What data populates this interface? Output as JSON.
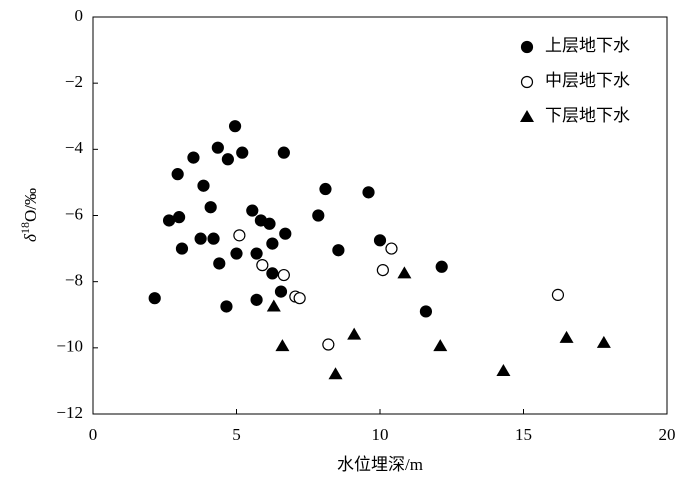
{
  "chart_data": {
    "type": "scatter",
    "x_label": "水位埋深/m",
    "y_label": {
      "prefix": "δ",
      "sup": "18",
      "suffix": "O/‰"
    },
    "xlim": [
      0,
      20
    ],
    "xticks": [
      0,
      5,
      10,
      15,
      20
    ],
    "ylim": [
      -12,
      0
    ],
    "yticks": [
      {
        "value": -12,
        "label": "−12"
      },
      {
        "value": -10,
        "label": "−10"
      },
      {
        "value": -8,
        "label": "−8"
      },
      {
        "value": -6,
        "label": "−6"
      },
      {
        "value": -4,
        "label": "−4"
      },
      {
        "value": -2,
        "label": "−2"
      },
      0
    ],
    "legend": "upper right",
    "series": [
      {
        "name": "上层地下水",
        "marker": "filled-circle",
        "color": "#000000",
        "x": [
          2.15,
          2.65,
          3.0,
          2.95,
          3.1,
          3.5,
          3.75,
          3.85,
          4.1,
          4.2,
          4.35,
          4.4,
          4.65,
          4.7,
          4.95,
          5.0,
          5.2,
          5.55,
          5.7,
          5.7,
          5.85,
          6.15,
          6.25,
          6.25,
          6.55,
          6.7,
          6.65,
          7.85,
          8.1,
          8.55,
          9.6,
          10.0,
          11.6,
          12.15
        ],
        "values": [
          -8.5,
          -6.15,
          -6.05,
          -4.75,
          -7.0,
          -4.25,
          -6.7,
          -5.1,
          -5.75,
          -6.7,
          -3.95,
          -7.45,
          -8.75,
          -4.3,
          -3.3,
          -7.15,
          -4.1,
          -5.85,
          -7.15,
          -8.55,
          -6.15,
          -6.25,
          -6.85,
          -7.75,
          -8.3,
          -6.55,
          -4.1,
          -6.0,
          -5.2,
          -7.05,
          -5.3,
          -6.75,
          -8.9,
          -7.55
        ]
      },
      {
        "name": "中层地下水",
        "marker": "open-circle",
        "color": "#000000",
        "x": [
          5.1,
          5.9,
          6.65,
          7.05,
          7.2,
          8.2,
          10.1,
          10.4,
          16.2
        ],
        "values": [
          -6.6,
          -7.5,
          -7.8,
          -8.45,
          -8.5,
          -9.9,
          -7.65,
          -7.0,
          -8.4
        ]
      },
      {
        "name": "下层地下水",
        "marker": "triangle",
        "color": "#000000",
        "x": [
          6.3,
          6.6,
          8.45,
          9.1,
          10.85,
          12.1,
          14.3,
          16.5,
          17.8
        ],
        "values": [
          -8.75,
          -9.95,
          -10.8,
          -9.6,
          -7.75,
          -9.95,
          -10.7,
          -9.7,
          -9.85
        ]
      }
    ]
  }
}
